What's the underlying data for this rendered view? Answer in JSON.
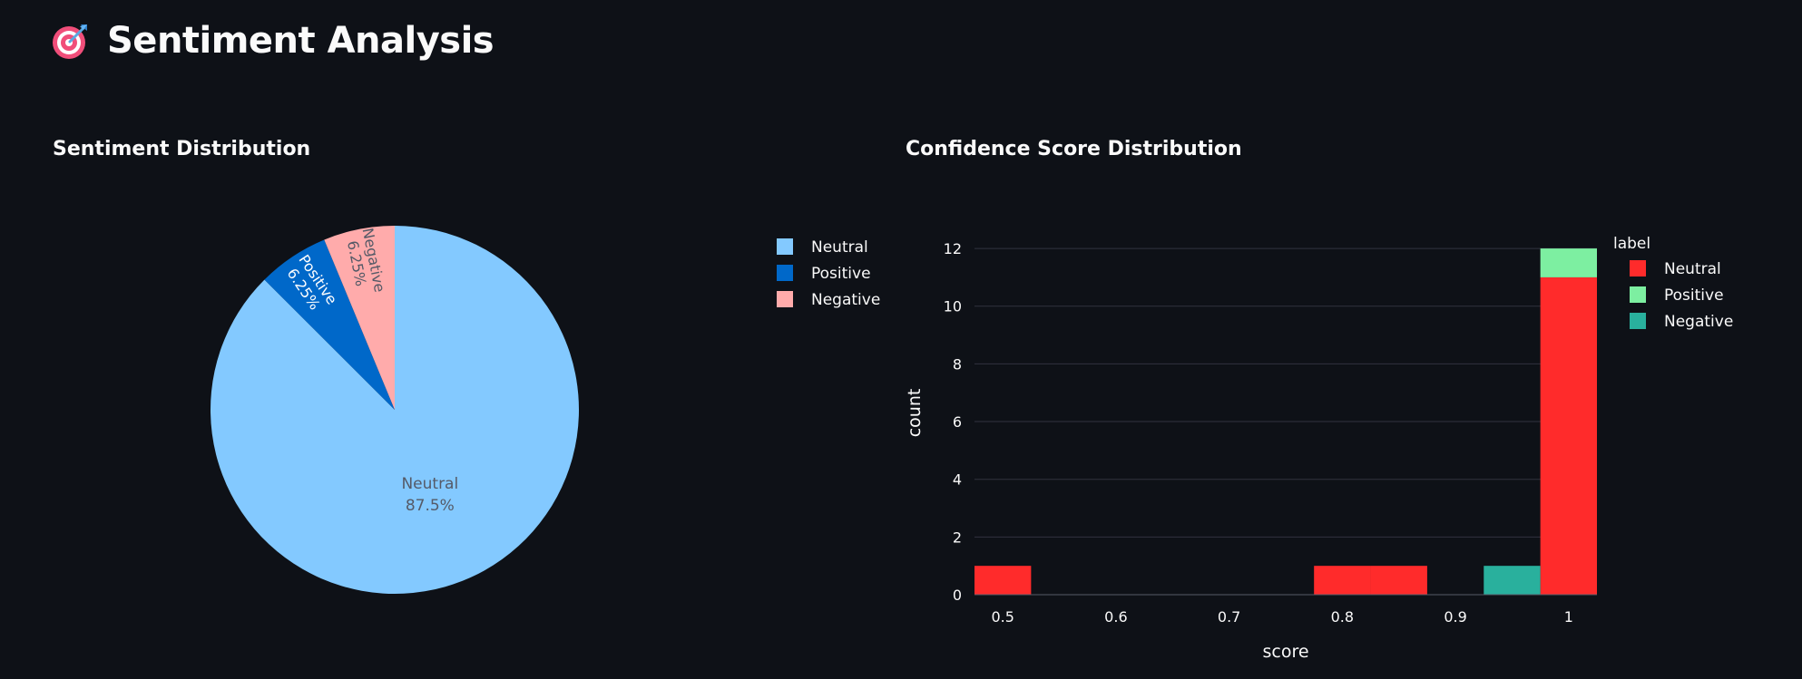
{
  "app": {
    "title": "Sentiment Analysis",
    "icon": "target-dart-icon"
  },
  "colors": {
    "background": "#0e1117",
    "text": "#fafafa",
    "gridline": "#31333f"
  },
  "chart_data": [
    {
      "type": "pie",
      "title": "Sentiment Distribution",
      "slices": [
        {
          "label": "Neutral",
          "value": 87.5,
          "text": "87.5%",
          "color": "#83c9ff",
          "text_color": "#555a67"
        },
        {
          "label": "Positive",
          "value": 6.25,
          "text": "6.25%",
          "color": "#0068c9",
          "text_color": "#ffffff"
        },
        {
          "label": "Negative",
          "value": 6.25,
          "text": "6.25%",
          "color": "#ffabab",
          "text_color": "#555a67"
        }
      ],
      "legend": [
        "Neutral",
        "Positive",
        "Negative"
      ],
      "legend_position": "right",
      "direction": "clockwise",
      "start": "top"
    },
    {
      "type": "bar",
      "subtype": "stacked-histogram",
      "title": "Confidence Score Distribution",
      "xlabel": "score",
      "ylabel": "count",
      "xlim": [
        0.475,
        1.025
      ],
      "ylim": [
        0,
        12.6
      ],
      "x_ticks": [
        0.5,
        0.6,
        0.7,
        0.8,
        0.9,
        1
      ],
      "x_tick_labels": [
        "0.5",
        "0.6",
        "0.7",
        "0.8",
        "0.9",
        "1"
      ],
      "y_ticks": [
        0,
        2,
        4,
        6,
        8,
        10,
        12
      ],
      "y_tick_labels": [
        "0",
        "2",
        "4",
        "6",
        "8",
        "10",
        "12"
      ],
      "grid": true,
      "legend_title": "label",
      "legend_position": "top-right",
      "bin_width": 0.05,
      "series": [
        {
          "name": "Neutral",
          "color": "#ff2b2b",
          "bins": [
            {
              "x0": 0.475,
              "x1": 0.525,
              "count": 1
            },
            {
              "x0": 0.775,
              "x1": 0.825,
              "count": 1
            },
            {
              "x0": 0.825,
              "x1": 0.875,
              "count": 1
            },
            {
              "x0": 0.975,
              "x1": 1.025,
              "count": 11
            }
          ]
        },
        {
          "name": "Positive",
          "color": "#7defa1",
          "bins": [
            {
              "x0": 0.975,
              "x1": 1.025,
              "count": 1
            }
          ]
        },
        {
          "name": "Negative",
          "color": "#29b09d",
          "bins": [
            {
              "x0": 0.925,
              "x1": 0.975,
              "count": 1
            }
          ]
        }
      ]
    }
  ]
}
